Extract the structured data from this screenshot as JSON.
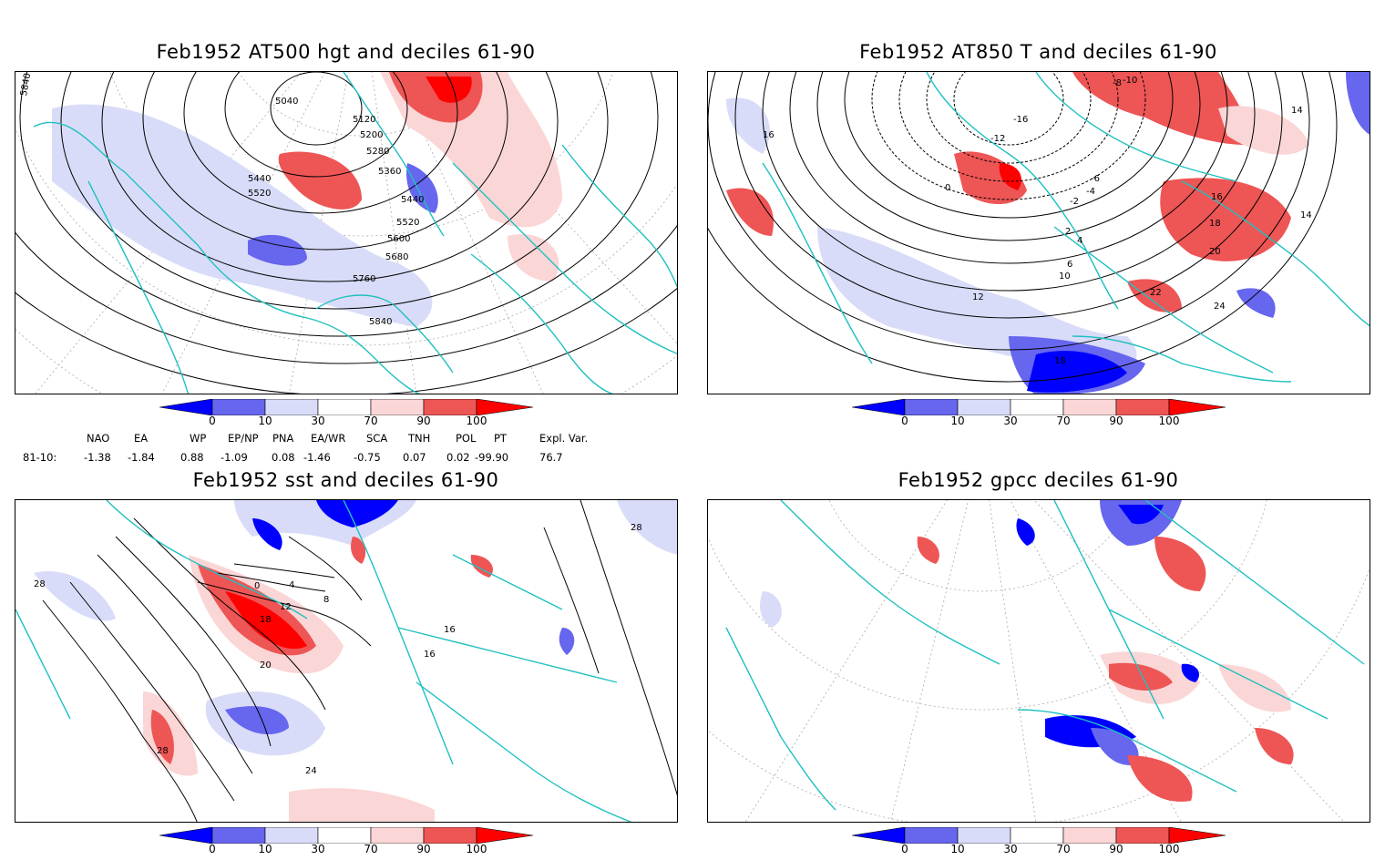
{
  "panels": [
    {
      "id": "p1",
      "title": "Feb1952 AT500 hgt and deciles 61-90",
      "contour_labels": [
        "5040",
        "5120",
        "5200",
        "5280",
        "5360",
        "5440",
        "5520",
        "5600",
        "5680",
        "5760",
        "5840",
        "5520",
        "5440",
        "5840"
      ]
    },
    {
      "id": "p2",
      "title": "Feb1952 AT850 T and deciles 61-90",
      "contour_labels": [
        "-16",
        "-12",
        "-10",
        "-8",
        "-6",
        "-4",
        "-2",
        "0",
        "2",
        "4",
        "6",
        "10",
        "12",
        "14",
        "16",
        "18",
        "20",
        "22",
        "24",
        "18",
        "16",
        "14"
      ]
    },
    {
      "id": "p3",
      "title": "Feb1952 sst and deciles 61-90",
      "contour_labels": [
        "0",
        "4",
        "8",
        "12",
        "16",
        "18",
        "20",
        "24",
        "28",
        "28",
        "16",
        "28"
      ]
    },
    {
      "id": "p4",
      "title": "Feb1952 gpcc deciles 61-90",
      "contour_labels": []
    }
  ],
  "colorbar": {
    "labels": [
      "0",
      "10",
      "30",
      "70",
      "90",
      "100"
    ],
    "colors": [
      "#0000ff",
      "#6666ee",
      "#d9dcf8",
      "#ffffff",
      "#fbd6d6",
      "#ee5555",
      "#ff0000"
    ]
  },
  "indices": {
    "headers": [
      "NAO",
      "EA",
      "WP",
      "EP/NP",
      "PNA",
      "EA/WR",
      "SCA",
      "TNH",
      "POL",
      "PT",
      "Expl. Var."
    ],
    "row_label": "81-10:",
    "values": [
      "-1.38",
      "-1.84",
      "0.88",
      "-1.09",
      "0.08",
      "-1.46",
      "-0.75",
      "0.07",
      "0.02",
      "-99.90",
      "76.7"
    ]
  },
  "colors": {
    "coast": "#20c0c0",
    "strong_blue": "#0000ff",
    "mid_blue": "#6666ee",
    "light_blue": "#d9dcf8",
    "light_red": "#fbd6d6",
    "mid_red": "#ee5555",
    "strong_red": "#ff0000",
    "contour": "#000000",
    "grid": "#aaaaaa"
  }
}
